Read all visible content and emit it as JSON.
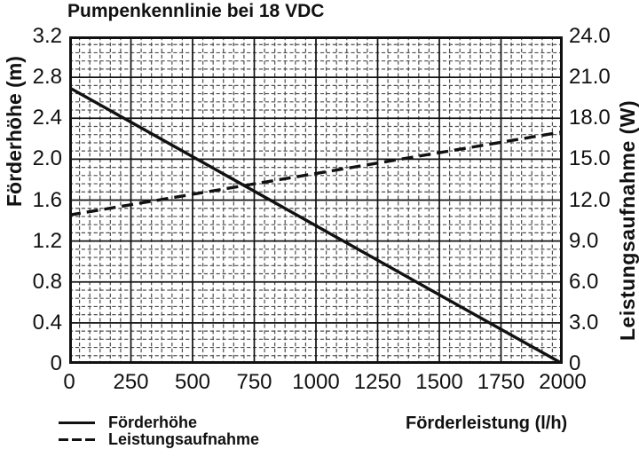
{
  "colors": {
    "line": "#111111",
    "major_grid": "#111111",
    "minor_grid": "#4d4d4d",
    "background": "#ffffff"
  },
  "chart_data": {
    "type": "line",
    "title": "Pumpenkennlinie bei 18 VDC",
    "xlabel": "Förderleistung (l/h)",
    "ylabel_left": "Förderhöhe (m)",
    "ylabel_right": "Leistungsaufnahme (W)",
    "xlim": [
      0,
      2000
    ],
    "ylim_left": [
      0,
      3.2
    ],
    "ylim_right": [
      0,
      24
    ],
    "x_ticks": [
      "0",
      "250",
      "500",
      "750",
      "1000",
      "1250",
      "1500",
      "1750",
      "2000"
    ],
    "y_left_ticks": [
      "3.2",
      "2.8",
      "2.4",
      "2.0",
      "1.6",
      "1.2",
      "0.8",
      "0.4",
      "0"
    ],
    "y_right_ticks": [
      "24.0",
      "21.0",
      "18.0",
      "15.0",
      "12.0",
      "9.0",
      "6.0",
      "3.0",
      "0"
    ],
    "grid": "major solid black every tick, fine dashed minor mesh (6 x-subdivisions, 5 y-subdivisions)",
    "legend_position": "bottom-left",
    "series": [
      {
        "name": "Förderhöhe",
        "axis": "left",
        "unit": "m",
        "style": "solid",
        "points": [
          [
            0,
            2.7
          ],
          [
            2000,
            0
          ]
        ]
      },
      {
        "name": "Leistungsaufnahme",
        "axis": "right",
        "unit": "W",
        "style": "dashed",
        "points": [
          [
            0,
            10.9
          ],
          [
            2000,
            17.0
          ]
        ]
      }
    ],
    "legend": {
      "entries": [
        {
          "label": "Förderhöhe",
          "style": "solid"
        },
        {
          "label": "Leistungsaufnahme",
          "style": "dashed"
        }
      ]
    }
  }
}
